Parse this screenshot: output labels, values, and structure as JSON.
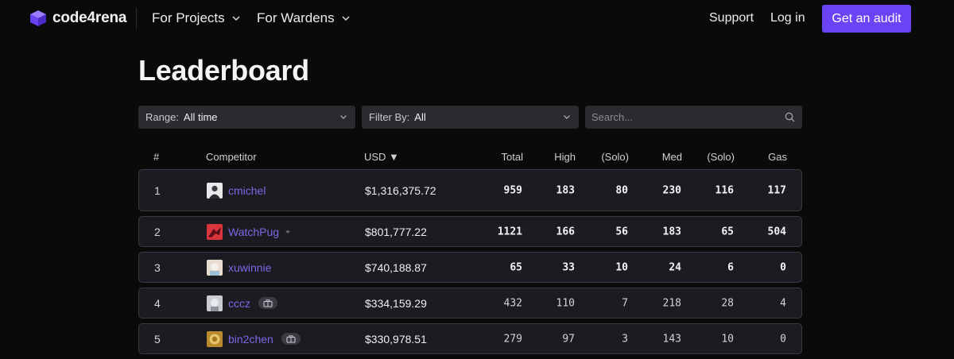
{
  "brand": {
    "name": "code4rena",
    "accent": "#6a44f4"
  },
  "nav": {
    "for_projects": "For Projects",
    "for_wardens": "For Wardens",
    "support": "Support",
    "login": "Log in",
    "get_audit": "Get an audit"
  },
  "page": {
    "title": "Leaderboard"
  },
  "filters": {
    "range_label": "Range:",
    "range_value": "All time",
    "filter_label": "Filter By:",
    "filter_value": "All",
    "search_placeholder": "Search..."
  },
  "table": {
    "columns": {
      "rank": "#",
      "competitor": "Competitor",
      "usd": "USD ▼",
      "total": "Total",
      "high": "High",
      "high_solo": "(Solo)",
      "med": "Med",
      "med_solo": "(Solo)",
      "gas": "Gas"
    },
    "rows": [
      {
        "rank": "1",
        "name": "cmichel",
        "usd": "$1,316,375.72",
        "total": "959",
        "high": "183",
        "high_solo": "80",
        "med": "230",
        "med_solo": "116",
        "gas": "117",
        "team": false,
        "expandable": false,
        "avatar_icon": "person-portrait-icon"
      },
      {
        "rank": "2",
        "name": "WatchPug",
        "usd": "$801,777.22",
        "total": "1121",
        "high": "166",
        "high_solo": "56",
        "med": "183",
        "med_solo": "65",
        "gas": "504",
        "team": false,
        "expandable": true,
        "avatar_icon": "red-bird-icon"
      },
      {
        "rank": "3",
        "name": "xuwinnie",
        "usd": "$740,188.87",
        "total": "65",
        "high": "33",
        "high_solo": "10",
        "med": "24",
        "med_solo": "6",
        "gas": "0",
        "team": false,
        "expandable": false,
        "avatar_icon": "pastel-character-icon"
      },
      {
        "rank": "4",
        "name": "cccz",
        "usd": "$334,159.29",
        "total": "432",
        "high": "110",
        "high_solo": "7",
        "med": "218",
        "med_solo": "28",
        "gas": "4",
        "team": true,
        "expandable": false,
        "avatar_icon": "grey-photo-icon"
      },
      {
        "rank": "5",
        "name": "bin2chen",
        "usd": "$330,978.51",
        "total": "279",
        "high": "97",
        "high_solo": "3",
        "med": "143",
        "med_solo": "10",
        "gas": "0",
        "team": true,
        "expandable": false,
        "avatar_icon": "golden-coin-icon"
      }
    ]
  }
}
